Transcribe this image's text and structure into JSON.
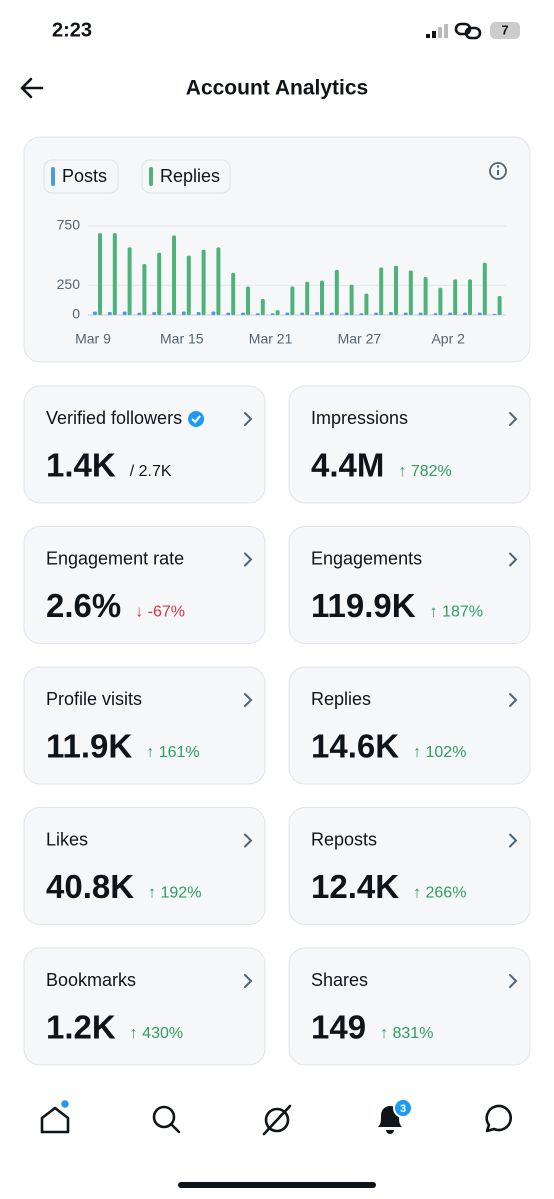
{
  "status_bar": {
    "time": "2:23",
    "battery": "7"
  },
  "header": {
    "title": "Account Analytics"
  },
  "chart": {
    "type": "bar",
    "categories": [
      "Mar 9",
      null,
      null,
      null,
      null,
      null,
      "Mar 15",
      null,
      null,
      null,
      null,
      null,
      "Mar 21",
      null,
      null,
      null,
      null,
      null,
      "Mar 27",
      null,
      null,
      null,
      null,
      null,
      "Apr 2",
      null,
      null,
      null
    ],
    "series": [
      {
        "name": "Posts",
        "color": "#4a99e9",
        "values": [
          30,
          25,
          30,
          20,
          25,
          20,
          30,
          25,
          30,
          20,
          20,
          15,
          15,
          20,
          20,
          25,
          20,
          20,
          15,
          20,
          25,
          20,
          20,
          15,
          20,
          20,
          20,
          10
        ]
      },
      {
        "name": "Replies",
        "color": "#4fb27a",
        "values": [
          690,
          690,
          570,
          430,
          525,
          670,
          500,
          550,
          570,
          355,
          240,
          135,
          40,
          240,
          280,
          290,
          380,
          255,
          180,
          400,
          415,
          375,
          320,
          230,
          300,
          300,
          440,
          160
        ]
      }
    ],
    "ylim": [
      0,
      750
    ],
    "yticks": [
      0,
      250,
      750
    ],
    "grid": true
  },
  "cards": [
    {
      "label": "Verified followers",
      "value": "1.4K",
      "secondary": "/ 2.7K",
      "verified": true
    },
    {
      "label": "Impressions",
      "value": "4.4M",
      "change": "↑ 782%",
      "change_color": "#2f9e5f"
    },
    {
      "label": "Engagement rate",
      "value": "2.6%",
      "change": "↓ -67%",
      "change_color": "#cf3a3f"
    },
    {
      "label": "Engagements",
      "value": "119.9K",
      "change": "↑ 187%",
      "change_color": "#2f9e5f"
    },
    {
      "label": "Profile visits",
      "value": "11.9K",
      "change": "↑ 161%",
      "change_color": "#2f9e5f"
    },
    {
      "label": "Replies",
      "value": "14.6K",
      "change": "↑ 102%",
      "change_color": "#2f9e5f"
    },
    {
      "label": "Likes",
      "value": "40.8K",
      "change": "↑ 192%",
      "change_color": "#2f9e5f"
    },
    {
      "label": "Reposts",
      "value": "12.4K",
      "change": "↑ 266%",
      "change_color": "#2f9e5f"
    },
    {
      "label": "Bookmarks",
      "value": "1.2K",
      "change": "↑ 430%",
      "change_color": "#2f9e5f"
    },
    {
      "label": "Shares",
      "value": "149",
      "change": "↑ 831%",
      "change_color": "#2f9e5f"
    }
  ],
  "nav": {
    "notification_badge": "3"
  }
}
